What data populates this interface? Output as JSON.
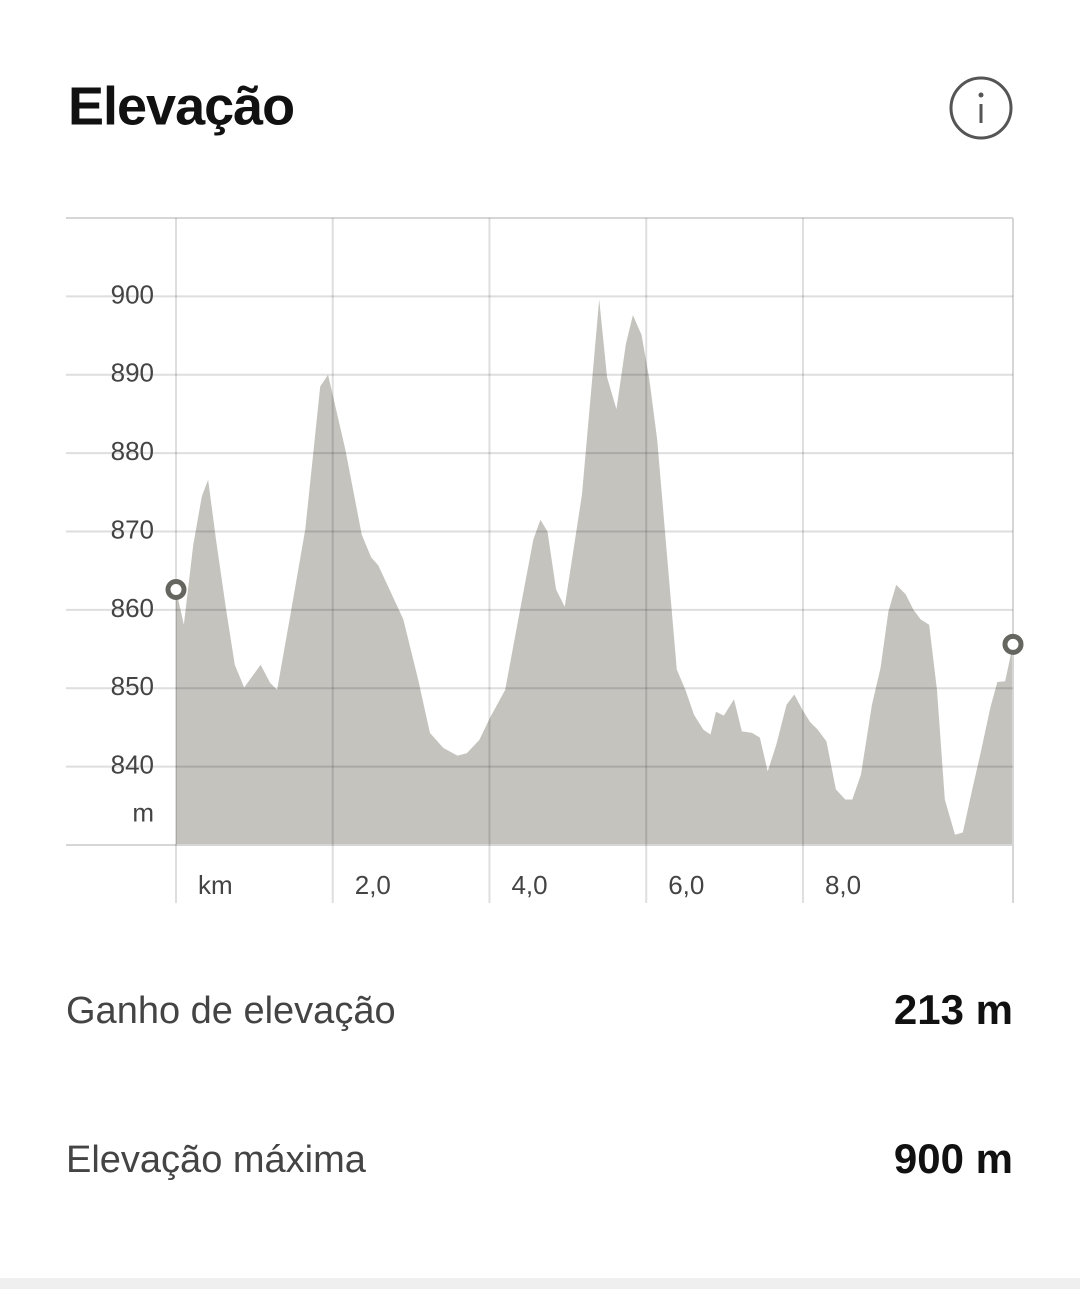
{
  "header": {
    "title": "Elevação"
  },
  "chart_data": {
    "type": "area",
    "x": [
      0,
      0.1,
      0.22,
      0.33,
      0.41,
      0.51,
      0.64,
      0.75,
      0.87,
      1.08,
      1.2,
      1.29,
      1.46,
      1.65,
      1.84,
      1.94,
      2.16,
      2.37,
      2.49,
      2.58,
      2.71,
      2.9,
      3.09,
      3.24,
      3.41,
      3.59,
      3.71,
      3.87,
      4.01,
      4.2,
      4.39,
      4.56,
      4.65,
      4.74,
      4.85,
      4.96,
      5.18,
      5.31,
      5.4,
      5.5,
      5.62,
      5.74,
      5.83,
      5.94,
      6.04,
      6.14,
      6.27,
      6.39,
      6.5,
      6.61,
      6.73,
      6.82,
      6.89,
      6.99,
      7.12,
      7.22,
      7.35,
      7.45,
      7.55,
      7.66,
      7.79,
      7.89,
      7.99,
      8.09,
      8.19,
      8.3,
      8.42,
      8.54,
      8.63,
      8.74,
      8.88,
      8.99,
      9.09,
      9.19,
      9.31,
      9.41,
      9.5,
      9.61,
      9.71,
      9.81,
      9.94,
      10.04,
      10.16,
      10.27,
      10.39,
      10.48,
      10.58,
      10.68
    ],
    "values": [
      862.6,
      858.1,
      868.3,
      874.5,
      876.6,
      869.0,
      860.0,
      853.0,
      850.1,
      853.0,
      850.7,
      849.8,
      859.4,
      870.3,
      888.5,
      890.0,
      880.5,
      869.6,
      866.7,
      865.7,
      862.9,
      858.8,
      851.1,
      844.3,
      842.4,
      841.4,
      841.7,
      843.4,
      846.3,
      849.8,
      860.0,
      869.0,
      871.5,
      870.0,
      862.6,
      860.4,
      874.7,
      889.4,
      899.6,
      889.7,
      885.6,
      893.9,
      897.6,
      895.1,
      889.4,
      881.7,
      866.4,
      852.4,
      849.8,
      846.6,
      844.7,
      844.1,
      847.0,
      846.5,
      848.6,
      844.5,
      844.3,
      843.7,
      839.4,
      842.8,
      847.9,
      849.2,
      847.3,
      845.7,
      844.7,
      843.2,
      837.1,
      835.8,
      835.8,
      839.0,
      847.9,
      852.6,
      859.8,
      863.2,
      862.0,
      860.0,
      858.8,
      858.1,
      849.8,
      835.8,
      831.3,
      831.6,
      837.1,
      841.9,
      847.5,
      850.8,
      850.9,
      855.6
    ],
    "color": "#c4c3be",
    "xlim": [
      0,
      10.68
    ],
    "ylim": [
      830,
      910
    ],
    "xticks": [
      {
        "value": 0,
        "label": "km"
      },
      {
        "value": 2,
        "label": "2,0"
      },
      {
        "value": 4,
        "label": "4,0"
      },
      {
        "value": 6,
        "label": "6,0"
      },
      {
        "value": 8,
        "label": "8,0"
      }
    ],
    "yticks": [
      840,
      850,
      860,
      870,
      880,
      890,
      900
    ],
    "y_unit": "m",
    "grid": true
  },
  "stats": [
    {
      "label": "Ganho de elevação",
      "value": "213 m"
    },
    {
      "label": "Elevação máxima",
      "value": "900 m"
    }
  ]
}
